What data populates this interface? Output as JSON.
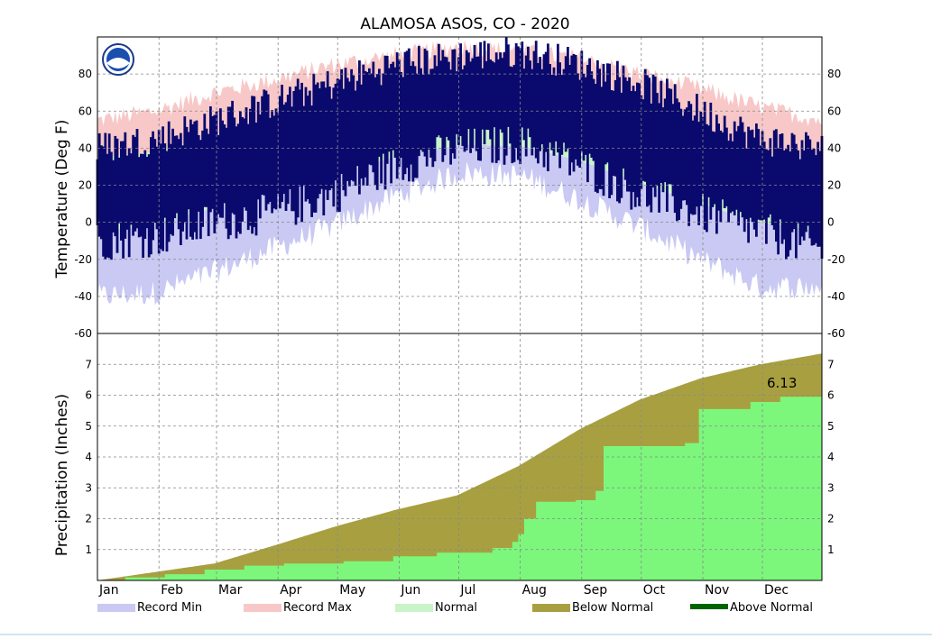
{
  "chart_data": {
    "type": "area",
    "title": "ALAMOSA          ASOS, CO - 2020",
    "months": [
      "Jan",
      "Feb",
      "Mar",
      "Apr",
      "May",
      "Jun",
      "Jul",
      "Aug",
      "Sep",
      "Oct",
      "Nov",
      "Dec"
    ],
    "temperature_panel": {
      "ylabel": "Temperature (Deg F)",
      "ylim": [
        -60,
        100
      ],
      "yticks": [
        -60,
        -40,
        -20,
        0,
        20,
        40,
        60,
        80
      ],
      "record_max_anchors_doy": [
        [
          1,
          55
        ],
        [
          30,
          60
        ],
        [
          60,
          70
        ],
        [
          90,
          77
        ],
        [
          120,
          85
        ],
        [
          150,
          90
        ],
        [
          185,
          95
        ],
        [
          215,
          92
        ],
        [
          245,
          88
        ],
        [
          275,
          80
        ],
        [
          305,
          72
        ],
        [
          335,
          62
        ],
        [
          366,
          55
        ]
      ],
      "normal_high_anchors_doy": [
        [
          1,
          35
        ],
        [
          30,
          38
        ],
        [
          60,
          47
        ],
        [
          90,
          56
        ],
        [
          120,
          66
        ],
        [
          150,
          76
        ],
        [
          185,
          82
        ],
        [
          215,
          80
        ],
        [
          245,
          72
        ],
        [
          275,
          62
        ],
        [
          305,
          48
        ],
        [
          335,
          37
        ],
        [
          366,
          34
        ]
      ],
      "normal_low_anchors_doy": [
        [
          1,
          -5
        ],
        [
          30,
          -1
        ],
        [
          60,
          8
        ],
        [
          90,
          18
        ],
        [
          120,
          26
        ],
        [
          150,
          35
        ],
        [
          185,
          42
        ],
        [
          215,
          41
        ],
        [
          245,
          33
        ],
        [
          275,
          21
        ],
        [
          305,
          10
        ],
        [
          335,
          0
        ],
        [
          366,
          -5
        ]
      ],
      "record_min_anchors_doy": [
        [
          1,
          -40
        ],
        [
          30,
          -38
        ],
        [
          60,
          -27
        ],
        [
          90,
          -14
        ],
        [
          120,
          -2
        ],
        [
          150,
          14
        ],
        [
          185,
          27
        ],
        [
          215,
          25
        ],
        [
          245,
          12
        ],
        [
          275,
          -3
        ],
        [
          305,
          -20
        ],
        [
          335,
          -35
        ],
        [
          366,
          -35
        ]
      ],
      "observed_anchors_doy": [
        [
          1,
          -10,
          40
        ],
        [
          30,
          -8,
          45
        ],
        [
          60,
          0,
          55
        ],
        [
          90,
          5,
          65
        ],
        [
          120,
          15,
          75
        ],
        [
          150,
          30,
          85
        ],
        [
          185,
          40,
          90
        ],
        [
          215,
          42,
          92
        ],
        [
          245,
          30,
          85
        ],
        [
          275,
          15,
          75
        ],
        [
          305,
          5,
          60
        ],
        [
          335,
          -5,
          45
        ],
        [
          366,
          -15,
          40
        ]
      ]
    },
    "precipitation_panel": {
      "ylabel": "Precipitation (Inches)",
      "ylim": [
        0,
        8
      ],
      "yticks": [
        1,
        2,
        3,
        4,
        5,
        6,
        7
      ],
      "annotation": "6.13",
      "normal_cumulative_anchors_doy": [
        [
          1,
          0
        ],
        [
          31,
          0.28
        ],
        [
          60,
          0.55
        ],
        [
          91,
          1.15
        ],
        [
          121,
          1.75
        ],
        [
          152,
          2.3
        ],
        [
          182,
          2.75
        ],
        [
          213,
          3.7
        ],
        [
          244,
          4.9
        ],
        [
          274,
          5.85
        ],
        [
          305,
          6.55
        ],
        [
          335,
          7.0
        ],
        [
          366,
          7.35
        ]
      ],
      "observed_cumulative_steps_doy": [
        [
          1,
          0
        ],
        [
          15,
          0.1
        ],
        [
          35,
          0.2
        ],
        [
          55,
          0.35
        ],
        [
          75,
          0.48
        ],
        [
          95,
          0.55
        ],
        [
          125,
          0.62
        ],
        [
          150,
          0.78
        ],
        [
          172,
          0.9
        ],
        [
          200,
          1.05
        ],
        [
          210,
          1.25
        ],
        [
          213,
          1.5
        ],
        [
          216,
          2.0
        ],
        [
          222,
          2.55
        ],
        [
          242,
          2.6
        ],
        [
          252,
          2.9
        ],
        [
          256,
          4.35
        ],
        [
          297,
          4.45
        ],
        [
          304,
          5.55
        ],
        [
          330,
          5.78
        ],
        [
          345,
          5.95
        ],
        [
          366,
          6.13
        ]
      ]
    },
    "legend": [
      {
        "label": "Record Min",
        "color": "#c9c9f4"
      },
      {
        "label": "Record Max",
        "color": "#f8c8c8"
      },
      {
        "label": "Normal",
        "color": "#c8f4c8"
      },
      {
        "label": "Below Normal",
        "color": "#a8a040"
      },
      {
        "label": "Above Normal",
        "color": "#006400"
      }
    ],
    "colors": {
      "record_min": "#c9c9f4",
      "record_max": "#f8c8c8",
      "normal": "#c8f4c8",
      "observed": "#0a0a6e",
      "below_normal": "#a8a040",
      "observed_precip": "#7cf77c"
    }
  }
}
